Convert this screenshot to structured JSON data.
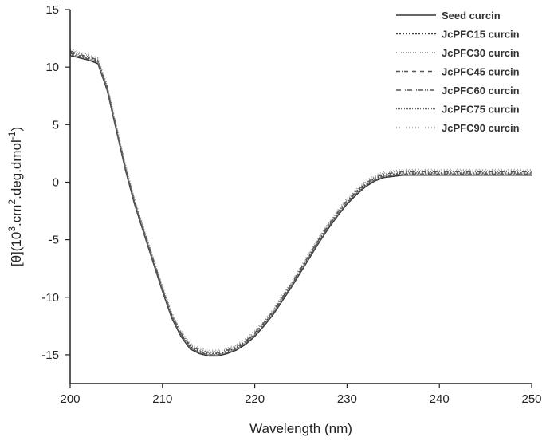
{
  "chart_data": {
    "type": "line",
    "title": "",
    "xlabel": "Wavelength (nm)",
    "ylabel_parts": [
      "[θ](10",
      "3",
      ".cm",
      "2",
      ".deg.dmol",
      "-1",
      ")"
    ],
    "xlim": [
      200,
      250
    ],
    "ylim": [
      -17.5,
      15
    ],
    "xticks": [
      200,
      210,
      220,
      230,
      240,
      250
    ],
    "yticks": [
      -15,
      -10,
      -5,
      0,
      5,
      10,
      15
    ],
    "grid": false,
    "legend_position": "top-right",
    "x": [
      200,
      201,
      202,
      203,
      204,
      205,
      206,
      207,
      208,
      209,
      210,
      211,
      212,
      213,
      214,
      215,
      216,
      217,
      218,
      219,
      220,
      221,
      222,
      223,
      224,
      225,
      226,
      227,
      228,
      229,
      230,
      231,
      232,
      233,
      234,
      235,
      236,
      237,
      238,
      239,
      240,
      245,
      250
    ],
    "series": [
      {
        "name": "Seed curcin",
        "dash": "",
        "color": "#333333",
        "values": [
          11.0,
          10.8,
          10.6,
          10.3,
          8.0,
          4.5,
          1.0,
          -2.0,
          -4.5,
          -7.0,
          -9.5,
          -11.8,
          -13.4,
          -14.5,
          -14.9,
          -15.1,
          -15.1,
          -14.9,
          -14.6,
          -14.1,
          -13.4,
          -12.5,
          -11.5,
          -10.3,
          -9.1,
          -7.8,
          -6.5,
          -5.2,
          -4.0,
          -2.9,
          -1.9,
          -1.1,
          -0.4,
          0.1,
          0.4,
          0.5,
          0.6,
          0.6,
          0.6,
          0.6,
          0.6,
          0.6,
          0.6
        ]
      },
      {
        "name": "JcPFC15 curcin",
        "dash": "2,2",
        "color": "#444444",
        "values": [
          11.3,
          11.0,
          10.8,
          10.5,
          8.2,
          4.7,
          1.2,
          -1.8,
          -4.3,
          -6.8,
          -9.3,
          -11.6,
          -13.2,
          -14.3,
          -14.7,
          -14.9,
          -14.9,
          -14.7,
          -14.4,
          -13.9,
          -13.2,
          -12.3,
          -11.3,
          -10.1,
          -8.9,
          -7.6,
          -6.3,
          -5.0,
          -3.8,
          -2.7,
          -1.7,
          -0.9,
          -0.2,
          0.3,
          0.6,
          0.7,
          0.8,
          0.8,
          0.8,
          0.8,
          0.8,
          0.8,
          0.8
        ]
      },
      {
        "name": "JcPFC30 curcin",
        "dash": "1,2",
        "color": "#888888",
        "values": [
          11.5,
          11.2,
          11.0,
          10.7,
          8.4,
          4.9,
          1.4,
          -1.6,
          -4.1,
          -6.6,
          -9.1,
          -11.4,
          -13.0,
          -14.1,
          -14.5,
          -14.7,
          -14.7,
          -14.5,
          -14.2,
          -13.7,
          -13.0,
          -12.1,
          -11.1,
          -9.9,
          -8.7,
          -7.4,
          -6.1,
          -4.8,
          -3.6,
          -2.5,
          -1.5,
          -0.7,
          0.0,
          0.5,
          0.8,
          0.9,
          1.0,
          1.0,
          1.0,
          1.0,
          1.0,
          1.0,
          1.0
        ]
      },
      {
        "name": "JcPFC45 curcin",
        "dash": "5,2,1,2",
        "color": "#555555",
        "values": [
          11.2,
          10.9,
          10.7,
          10.4,
          8.1,
          4.6,
          1.1,
          -1.9,
          -4.4,
          -6.9,
          -9.4,
          -11.7,
          -13.3,
          -14.4,
          -14.8,
          -15.0,
          -15.0,
          -14.8,
          -14.5,
          -14.0,
          -13.3,
          -12.4,
          -11.4,
          -10.2,
          -9.0,
          -7.7,
          -6.4,
          -5.1,
          -3.9,
          -2.8,
          -1.8,
          -1.0,
          -0.3,
          0.2,
          0.5,
          0.6,
          0.7,
          0.7,
          0.7,
          0.7,
          0.7,
          0.7,
          0.7
        ]
      },
      {
        "name": "JcPFC60 curcin",
        "dash": "6,2,1,2,1,2",
        "color": "#555555",
        "values": [
          11.4,
          11.1,
          10.9,
          10.6,
          8.3,
          4.8,
          1.3,
          -1.7,
          -4.2,
          -6.7,
          -9.2,
          -11.5,
          -13.1,
          -14.2,
          -14.6,
          -14.8,
          -14.8,
          -14.6,
          -14.3,
          -13.8,
          -13.1,
          -12.2,
          -11.2,
          -10.0,
          -8.8,
          -7.5,
          -6.2,
          -4.9,
          -3.7,
          -2.6,
          -1.6,
          -0.8,
          -0.1,
          0.4,
          0.7,
          0.8,
          0.9,
          0.9,
          0.9,
          0.9,
          0.9,
          0.9,
          0.9
        ]
      },
      {
        "name": "JcPFC75 curcin",
        "dash": "1,1",
        "color": "#666666",
        "values": [
          11.1,
          10.9,
          10.7,
          10.4,
          8.1,
          4.6,
          1.1,
          -1.9,
          -4.4,
          -6.9,
          -9.4,
          -11.7,
          -13.3,
          -14.4,
          -14.8,
          -15.0,
          -15.0,
          -14.8,
          -14.5,
          -14.0,
          -13.3,
          -12.4,
          -11.4,
          -10.2,
          -9.0,
          -7.7,
          -6.4,
          -5.1,
          -3.9,
          -2.8,
          -1.8,
          -1.0,
          -0.3,
          0.2,
          0.5,
          0.6,
          0.7,
          0.7,
          0.7,
          0.7,
          0.7,
          0.7,
          0.7
        ]
      },
      {
        "name": "JcPFC90 curcin",
        "dash": "1,3",
        "color": "#999999",
        "values": [
          11.6,
          11.3,
          11.1,
          10.8,
          8.5,
          5.0,
          1.5,
          -1.5,
          -4.0,
          -6.5,
          -9.0,
          -11.3,
          -12.9,
          -14.0,
          -14.4,
          -14.6,
          -14.6,
          -14.4,
          -14.1,
          -13.6,
          -12.9,
          -12.0,
          -11.0,
          -9.8,
          -8.6,
          -7.3,
          -6.0,
          -4.7,
          -3.5,
          -2.4,
          -1.4,
          -0.6,
          0.1,
          0.6,
          0.9,
          1.0,
          1.1,
          1.1,
          1.1,
          1.1,
          1.1,
          1.1,
          1.1
        ]
      }
    ]
  }
}
